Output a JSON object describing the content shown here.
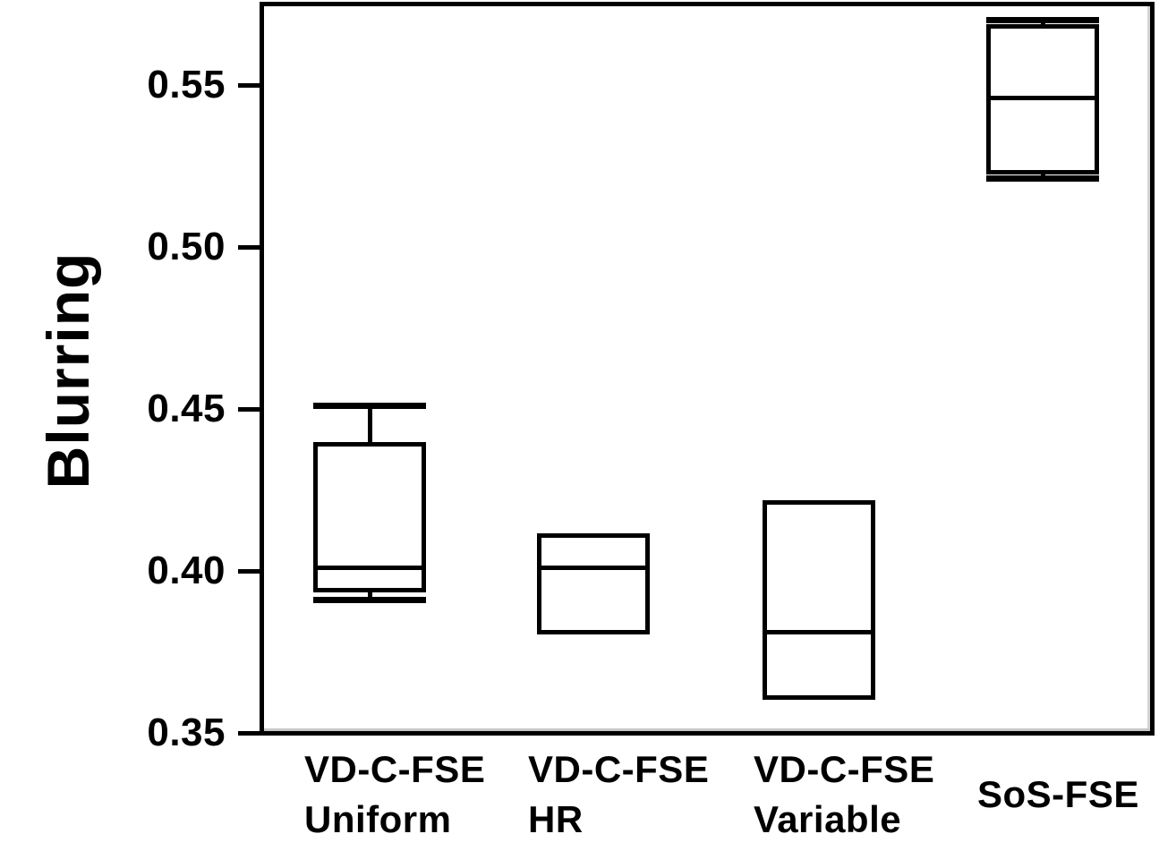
{
  "chart_data": {
    "type": "box",
    "title": "",
    "xlabel": "",
    "ylabel": "Blurring",
    "ylim": [
      0.35,
      0.575
    ],
    "grid": false,
    "legend": false,
    "orientation": "vertical",
    "yticks": [
      {
        "value": 0.35,
        "label": "0.35"
      },
      {
        "value": 0.4,
        "label": "0.40"
      },
      {
        "value": 0.45,
        "label": "0.45"
      },
      {
        "value": 0.5,
        "label": "0.50"
      },
      {
        "value": 0.55,
        "label": "0.55"
      }
    ],
    "categories": [
      {
        "label_lines": [
          "VD-C-FSE",
          "Uniform"
        ]
      },
      {
        "label_lines": [
          "VD-C-FSE",
          "HR"
        ]
      },
      {
        "label_lines": [
          "VD-C-FSE",
          "Variable"
        ]
      },
      {
        "label_lines": [
          "SoS-FSE"
        ]
      }
    ],
    "boxes": [
      {
        "category": "VD-C-FSE Uniform",
        "whisker_low": 0.391,
        "q1": 0.394,
        "median": 0.401,
        "q3": 0.439,
        "whisker_high": 0.451
      },
      {
        "category": "VD-C-FSE HR",
        "whisker_low": null,
        "q1": 0.381,
        "median": 0.401,
        "q3": 0.411,
        "whisker_high": null
      },
      {
        "category": "VD-C-FSE Variable",
        "whisker_low": null,
        "q1": 0.361,
        "median": 0.381,
        "q3": 0.421,
        "whisker_high": null
      },
      {
        "category": "SoS-FSE",
        "whisker_low": 0.521,
        "q1": 0.523,
        "median": 0.546,
        "q3": 0.568,
        "whisker_high": 0.57
      }
    ],
    "style": {
      "line_color": "#000000",
      "box_fill": "#ffffff",
      "background": "#ffffff",
      "inner_edge_gray": "#c8c8c8"
    }
  }
}
